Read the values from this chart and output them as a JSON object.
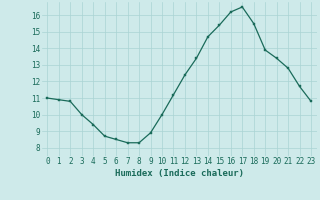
{
  "x": [
    0,
    1,
    2,
    3,
    4,
    5,
    6,
    7,
    8,
    9,
    10,
    11,
    12,
    13,
    14,
    15,
    16,
    17,
    18,
    19,
    20,
    21,
    22,
    23
  ],
  "y": [
    11.0,
    10.9,
    10.8,
    10.0,
    9.4,
    8.7,
    8.5,
    8.3,
    8.3,
    8.9,
    10.0,
    11.2,
    12.4,
    13.4,
    14.7,
    15.4,
    16.2,
    16.5,
    15.5,
    13.9,
    13.4,
    12.8,
    11.7,
    10.8
  ],
  "line_color": "#1a6b5a",
  "marker_color": "#1a6b5a",
  "bg_color": "#ceeaea",
  "grid_color": "#aad4d4",
  "xlabel": "Humidex (Indice chaleur)",
  "xlim": [
    -0.5,
    23.5
  ],
  "ylim": [
    7.5,
    16.8
  ],
  "yticks": [
    8,
    9,
    10,
    11,
    12,
    13,
    14,
    15,
    16
  ],
  "xticks": [
    0,
    1,
    2,
    3,
    4,
    5,
    6,
    7,
    8,
    9,
    10,
    11,
    12,
    13,
    14,
    15,
    16,
    17,
    18,
    19,
    20,
    21,
    22,
    23
  ],
  "xtick_labels": [
    "0",
    "1",
    "2",
    "3",
    "4",
    "5",
    "6",
    "7",
    "8",
    "9",
    "10",
    "11",
    "12",
    "13",
    "14",
    "15",
    "16",
    "17",
    "18",
    "19",
    "20",
    "21",
    "22",
    "23"
  ],
  "label_fontsize": 6.5,
  "tick_fontsize": 5.5
}
